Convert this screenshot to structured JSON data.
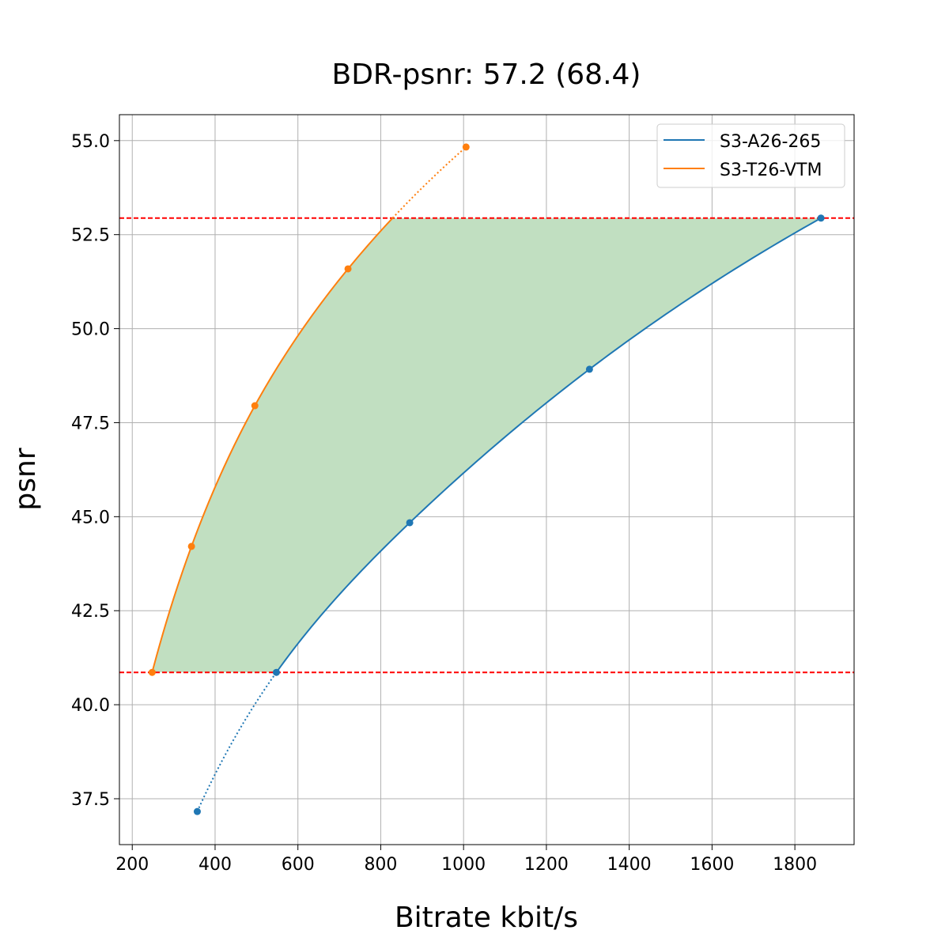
{
  "chart_data": {
    "type": "line",
    "title": "BDR-psnr: 57.2 (68.4)",
    "xlabel": "Bitrate kbit/s",
    "ylabel": "psnr",
    "xlim": [
      169,
      1943
    ],
    "ylim": [
      36.28,
      55.69
    ],
    "xticks": [
      200,
      400,
      600,
      800,
      1000,
      1200,
      1400,
      1600,
      1800
    ],
    "yticks": [
      37.5,
      40.0,
      42.5,
      45.0,
      47.5,
      50.0,
      52.5,
      55.0
    ],
    "grid": true,
    "legend_position": "top-right",
    "series": [
      {
        "name": "S3-A26-265",
        "color": "#1f77b4",
        "x": [
          357,
          548,
          870,
          1304,
          1863
        ],
        "y": [
          37.16,
          40.86,
          44.84,
          48.92,
          52.94
        ]
      },
      {
        "name": "S3-T26-VTM",
        "color": "#ff7f0e",
        "x": [
          248,
          343,
          496,
          721,
          1006
        ],
        "y": [
          40.86,
          44.21,
          47.95,
          51.59,
          54.83
        ]
      }
    ],
    "reference_lines": {
      "orientation": "horizontal",
      "style": "dashed",
      "color": "#ff0000",
      "y": [
        52.94,
        40.86
      ]
    },
    "fill_between": {
      "color": "#c1dfc1",
      "y_range": [
        40.86,
        52.94
      ]
    }
  }
}
